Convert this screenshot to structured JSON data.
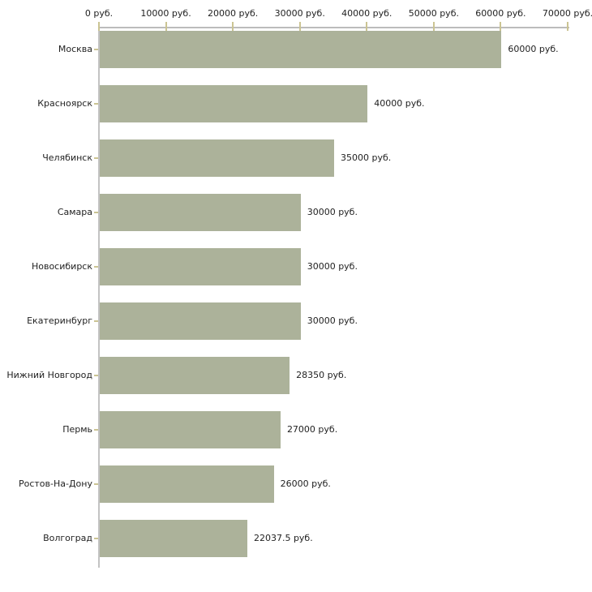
{
  "chart_data": {
    "type": "bar",
    "orientation": "horizontal",
    "title": "",
    "categories": [
      "Москва",
      "Красноярск",
      "Челябинск",
      "Самара",
      "Новосибирск",
      "Екатеринбург",
      "Нижний Новгород",
      "Пермь",
      "Ростов-На-Дону",
      "Волгоград"
    ],
    "values": [
      60000,
      40000,
      35000,
      30000,
      30000,
      30000,
      28350,
      27000,
      26000,
      22037.5
    ],
    "value_labels": [
      "60000 руб.",
      "40000 руб.",
      "35000 руб.",
      "30000 руб.",
      "30000 руб.",
      "30000 руб.",
      "28350 руб.",
      "27000 руб.",
      "26000 руб.",
      "22037.5 руб."
    ],
    "x_axis": {
      "position": "top",
      "min": 0,
      "max": 70000,
      "ticks": [
        0,
        10000,
        20000,
        30000,
        40000,
        50000,
        60000,
        70000
      ],
      "tick_labels": [
        "0 руб.",
        "10000 руб.",
        "20000 руб.",
        "30000 руб.",
        "40000 руб.",
        "50000 руб.",
        "60000 руб.",
        "70000 руб."
      ]
    },
    "grid": false,
    "legend": false,
    "colors": {
      "bar": "#acb29a",
      "axis_line": "#bcbcbc",
      "tick": "#cbc493",
      "text": "#1f1f1f",
      "background": "#ffffff"
    }
  }
}
